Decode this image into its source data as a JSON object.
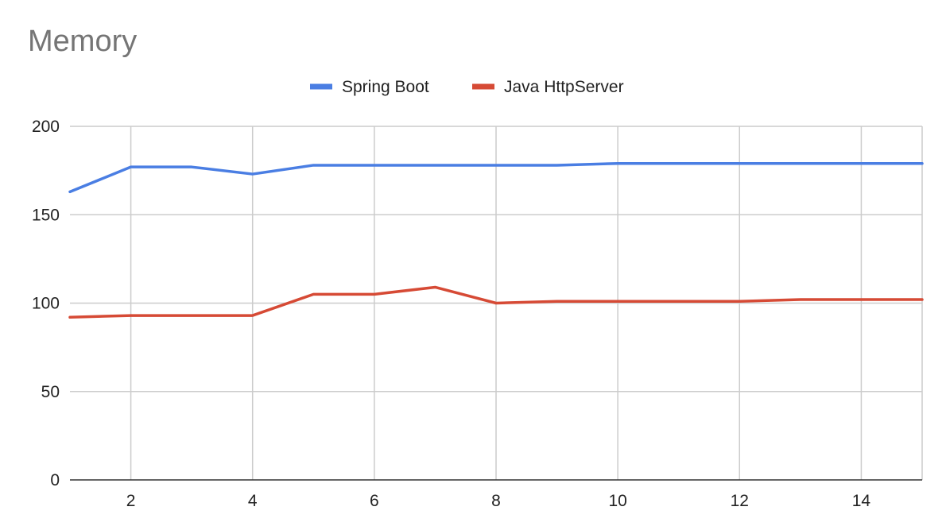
{
  "chart_data": {
    "type": "line",
    "title": "Memory",
    "xlabel": "",
    "ylabel": "",
    "x": [
      1,
      2,
      3,
      4,
      5,
      6,
      7,
      8,
      9,
      10,
      11,
      12,
      13,
      14,
      15
    ],
    "xlim": [
      1,
      15
    ],
    "x_ticks": [
      2,
      4,
      6,
      8,
      10,
      12,
      14
    ],
    "ylim": [
      0,
      200
    ],
    "y_ticks": [
      0,
      50,
      100,
      150,
      200
    ],
    "grid": true,
    "legend_position": "top",
    "series": [
      {
        "name": "Spring Boot",
        "color": "#4a7ee3",
        "values": [
          163,
          177,
          177,
          173,
          178,
          178,
          178,
          178,
          178,
          179,
          179,
          179,
          179,
          179,
          179
        ]
      },
      {
        "name": "Java HttpServer",
        "color": "#d64a35",
        "values": [
          92,
          93,
          93,
          93,
          105,
          105,
          109,
          100,
          101,
          101,
          101,
          101,
          102,
          102,
          102
        ]
      }
    ]
  }
}
